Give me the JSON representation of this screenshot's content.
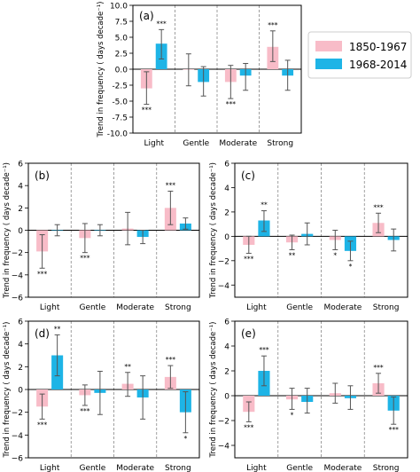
{
  "legend": {
    "items": [
      {
        "label": "1850-1967",
        "color": "#f8bcc8"
      },
      {
        "label": "1968-2014",
        "color": "#1eb4e6"
      }
    ]
  },
  "chart_data": [
    {
      "panel": "(a)",
      "type": "bar",
      "ylabel": "Trend in frequency ( days decade⁻¹)",
      "categories": [
        "Light",
        "Gentle",
        "Moderate",
        "Strong"
      ],
      "ylim": [
        -10,
        10
      ],
      "yticks": [
        "-10.0",
        "-7.5",
        "-5.0",
        "-2.5",
        "0.0",
        "2.5",
        "5.0",
        "7.5",
        "10.0"
      ],
      "series": [
        {
          "name": "1850-1967",
          "values": [
            -3.0,
            0.0,
            -2.0,
            3.5
          ],
          "err_lo": [
            -5.5,
            -2.6,
            -4.6,
            1.2
          ],
          "err_hi": [
            -0.4,
            2.4,
            0.6,
            6.0
          ],
          "sig": [
            "***",
            "",
            "***",
            "***"
          ]
        },
        {
          "name": "1968-2014",
          "values": [
            4.0,
            -2.0,
            -1.0,
            -1.0
          ],
          "err_lo": [
            1.6,
            -4.2,
            -3.3,
            -3.3
          ],
          "err_hi": [
            6.2,
            0.4,
            0.9,
            1.4
          ],
          "sig": [
            "***",
            "",
            "",
            ""
          ]
        }
      ]
    },
    {
      "panel": "(b)",
      "type": "bar",
      "ylabel": "Trend in frequency ( days decade⁻¹)",
      "categories": [
        "Light",
        "Gentle",
        "Moderate",
        "Strong"
      ],
      "ylim": [
        -6,
        6
      ],
      "yticks": [
        "−6",
        "−4",
        "−2",
        "0",
        "2",
        "4",
        "6"
      ],
      "series": [
        {
          "name": "1850-1967",
          "values": [
            -1.9,
            -0.7,
            0.15,
            2.0
          ],
          "err_lo": [
            -3.4,
            -2.0,
            -1.3,
            0.5
          ],
          "err_hi": [
            -0.4,
            0.6,
            1.6,
            3.5
          ],
          "sig": [
            "***",
            "***",
            "",
            "***"
          ]
        },
        {
          "name": "1968-2014",
          "values": [
            0.0,
            0.0,
            -0.6,
            0.6
          ],
          "err_lo": [
            -0.5,
            -0.5,
            -1.2,
            0.1
          ],
          "err_hi": [
            0.5,
            0.5,
            0.0,
            1.1
          ],
          "sig": [
            "",
            "",
            "",
            ""
          ]
        }
      ]
    },
    {
      "panel": "(c)",
      "type": "bar",
      "ylabel": "Trend in frequency ( days decade⁻¹)",
      "categories": [
        "Light",
        "Gentle",
        "Moderate",
        "Strong"
      ],
      "ylim": [
        -5,
        6
      ],
      "yticks": [
        "−4",
        "−2",
        "0",
        "2",
        "4",
        "6"
      ],
      "series": [
        {
          "name": "1850-1967",
          "values": [
            -0.7,
            -0.5,
            -0.3,
            1.1
          ],
          "err_lo": [
            -1.4,
            -1.1,
            -1.1,
            0.3
          ],
          "err_hi": [
            0.0,
            0.1,
            0.5,
            1.9
          ],
          "sig": [
            "***",
            "**",
            "*",
            "***"
          ]
        },
        {
          "name": "1968-2014",
          "values": [
            1.3,
            0.2,
            -1.2,
            -0.3
          ],
          "err_lo": [
            0.4,
            -0.7,
            -2.0,
            -1.2
          ],
          "err_hi": [
            2.1,
            1.1,
            -0.4,
            0.6
          ],
          "sig": [
            "**",
            "",
            "*",
            ""
          ]
        }
      ]
    },
    {
      "panel": "(d)",
      "type": "bar",
      "ylabel": "Trend in frequency ( days decade⁻¹)",
      "categories": [
        "Light",
        "Gentle",
        "Moderate",
        "Strong"
      ],
      "ylim": [
        -6,
        6
      ],
      "yticks": [
        "−6",
        "−4",
        "−2",
        "0",
        "2",
        "4",
        "6"
      ],
      "series": [
        {
          "name": "1850-1967",
          "values": [
            -1.5,
            -0.5,
            0.5,
            1.1
          ],
          "err_lo": [
            -2.6,
            -1.4,
            -0.6,
            0.1
          ],
          "err_hi": [
            -0.4,
            0.4,
            1.5,
            2.1
          ],
          "sig": [
            "***",
            "***",
            "**",
            "***"
          ]
        },
        {
          "name": "1968-2014",
          "values": [
            3.0,
            -0.3,
            -0.7,
            -2.0
          ],
          "err_lo": [
            1.2,
            -2.2,
            -2.6,
            -3.8
          ],
          "err_hi": [
            4.8,
            1.6,
            1.2,
            -0.2
          ],
          "sig": [
            "**",
            "",
            "",
            "*"
          ]
        }
      ]
    },
    {
      "panel": "(e)",
      "type": "bar",
      "ylabel": "Trend in frequency ( days decade⁻¹)",
      "categories": [
        "Light",
        "Gentle",
        "Moderate",
        "Strong"
      ],
      "ylim": [
        -5,
        6
      ],
      "yticks": [
        "−4",
        "−2",
        "0",
        "2",
        "4",
        "6"
      ],
      "series": [
        {
          "name": "1850-1967",
          "values": [
            -1.3,
            -0.3,
            0.2,
            1.0
          ],
          "err_lo": [
            -2.1,
            -1.1,
            -0.6,
            0.2
          ],
          "err_hi": [
            -0.5,
            0.6,
            1.0,
            1.8
          ],
          "sig": [
            "***",
            "*",
            "",
            "***"
          ]
        },
        {
          "name": "1968-2014",
          "values": [
            2.0,
            -0.5,
            -0.2,
            -1.2
          ],
          "err_lo": [
            0.8,
            -1.4,
            -1.1,
            -2.3
          ],
          "err_hi": [
            3.2,
            0.6,
            0.8,
            -0.1
          ],
          "sig": [
            "***",
            "",
            "",
            "***"
          ]
        }
      ]
    }
  ]
}
